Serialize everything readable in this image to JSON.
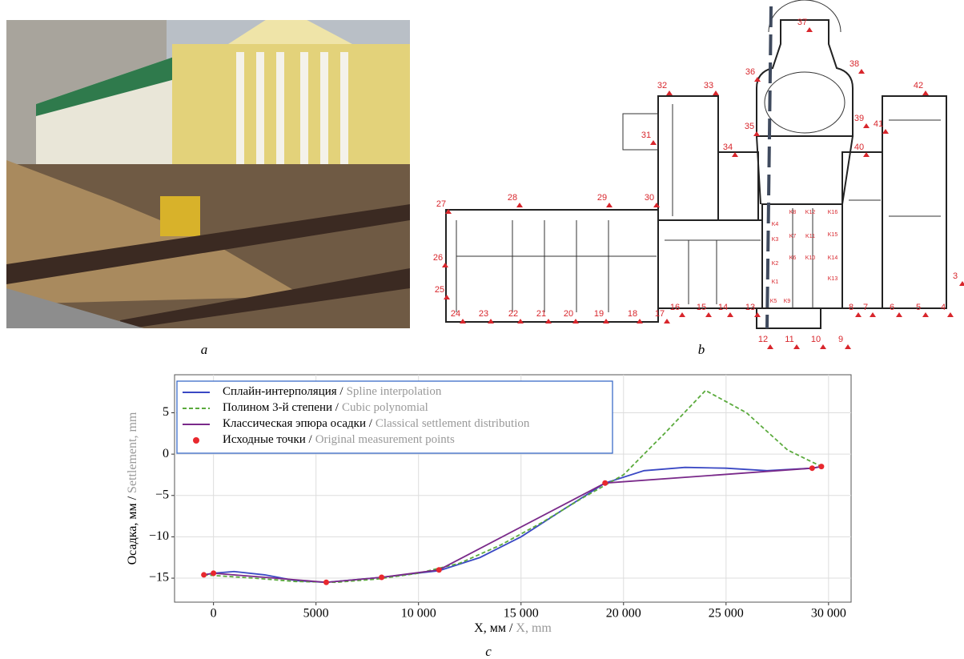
{
  "panel_labels": [
    "a",
    "b",
    "c"
  ],
  "plan": {
    "labels": [
      "3",
      "4",
      "5",
      "6",
      "7",
      "8",
      "9",
      "10",
      "11",
      "12",
      "13",
      "14",
      "15",
      "16",
      "17",
      "18",
      "19",
      "20",
      "21",
      "22",
      "23",
      "24",
      "25",
      "26",
      "27",
      "28",
      "29",
      "30",
      "31",
      "32",
      "33",
      "34",
      "35",
      "36",
      "37",
      "38",
      "39",
      "40",
      "41",
      "42"
    ],
    "k_labels": [
      "K1",
      "K2",
      "K3",
      "K4",
      "K5",
      "K6",
      "K7",
      "K8",
      "K9",
      "K10",
      "K11",
      "K12",
      "K13",
      "K14",
      "K15",
      "K16"
    ]
  },
  "chart_data": {
    "type": "line",
    "xlabel": "X, мм /",
    "xlabel_en": "X, mm",
    "ylabel": "Осадка, мм  /",
    "ylabel_en": "Settlement, mm",
    "xlim": [
      -1900,
      31100
    ],
    "ylim": [
      -17.9,
      9.6
    ],
    "xticks": [
      0,
      5000,
      {
        "value": 10000,
        "label": "10 000"
      },
      {
        "value": 15000,
        "label": "15 000"
      },
      {
        "value": 20000,
        "label": "20 000"
      },
      {
        "value": 25000,
        "label": "25 000"
      },
      {
        "value": 30000,
        "label": "30 000"
      }
    ],
    "yticks": [
      {
        "value": -15,
        "label": "−15"
      },
      {
        "value": -10,
        "label": "−10"
      },
      {
        "value": -5,
        "label": "−5"
      },
      0,
      5
    ],
    "grid": true,
    "legend": "upper left",
    "series": [
      {
        "name": "Сплайн-интерполяция /",
        "name_en": "Spline interpolation",
        "color": "#3a48c4",
        "style": "solid",
        "x": [
          -470,
          0,
          1000,
          2500,
          4000,
          5500,
          8200,
          11000,
          13000,
          15000,
          17000,
          19100,
          21000,
          23000,
          25000,
          27000,
          29200,
          29650
        ],
        "values": [
          -14.6,
          -14.4,
          -14.2,
          -14.6,
          -15.3,
          -15.5,
          -14.9,
          -14.1,
          -12.5,
          -10.0,
          -6.8,
          -3.5,
          -2.0,
          -1.6,
          -1.7,
          -2.0,
          -1.7,
          -1.5
        ]
      },
      {
        "name": "Полином 3-й степени  /",
        "name_en": "Cubic polynomial",
        "color": "#5aaa3c",
        "style": "dashed",
        "x": [
          -470,
          2000,
          4000,
          6000,
          8000,
          10000,
          12000,
          14000,
          16000,
          18000,
          20000,
          22000,
          24000,
          26000,
          28000,
          29650
        ],
        "values": [
          -14.6,
          -15.0,
          -15.4,
          -15.5,
          -15.1,
          -14.4,
          -13.2,
          -11.0,
          -8.3,
          -5.3,
          -2.5,
          2.5,
          7.7,
          5.0,
          0.5,
          -1.5
        ]
      },
      {
        "name": "Классическая эпюра осадки /",
        "name_en": "Classical settlement distribution",
        "color": "#7a2a8a",
        "style": "solid",
        "x": [
          -470,
          0,
          5500,
          8200,
          11000,
          19100,
          29200,
          29650
        ],
        "values": [
          -14.6,
          -14.4,
          -15.5,
          -14.9,
          -14.0,
          -3.5,
          -1.7,
          -1.5
        ]
      },
      {
        "name": "Исходные точки /",
        "name_en": "Original measurement points",
        "color": "#e8282e",
        "style": "points",
        "x": [
          -470,
          0,
          5500,
          8200,
          11000,
          19100,
          29200,
          29650
        ],
        "values": [
          -14.6,
          -14.4,
          -15.5,
          -14.9,
          -14.0,
          -3.5,
          -1.7,
          -1.5
        ]
      }
    ]
  }
}
